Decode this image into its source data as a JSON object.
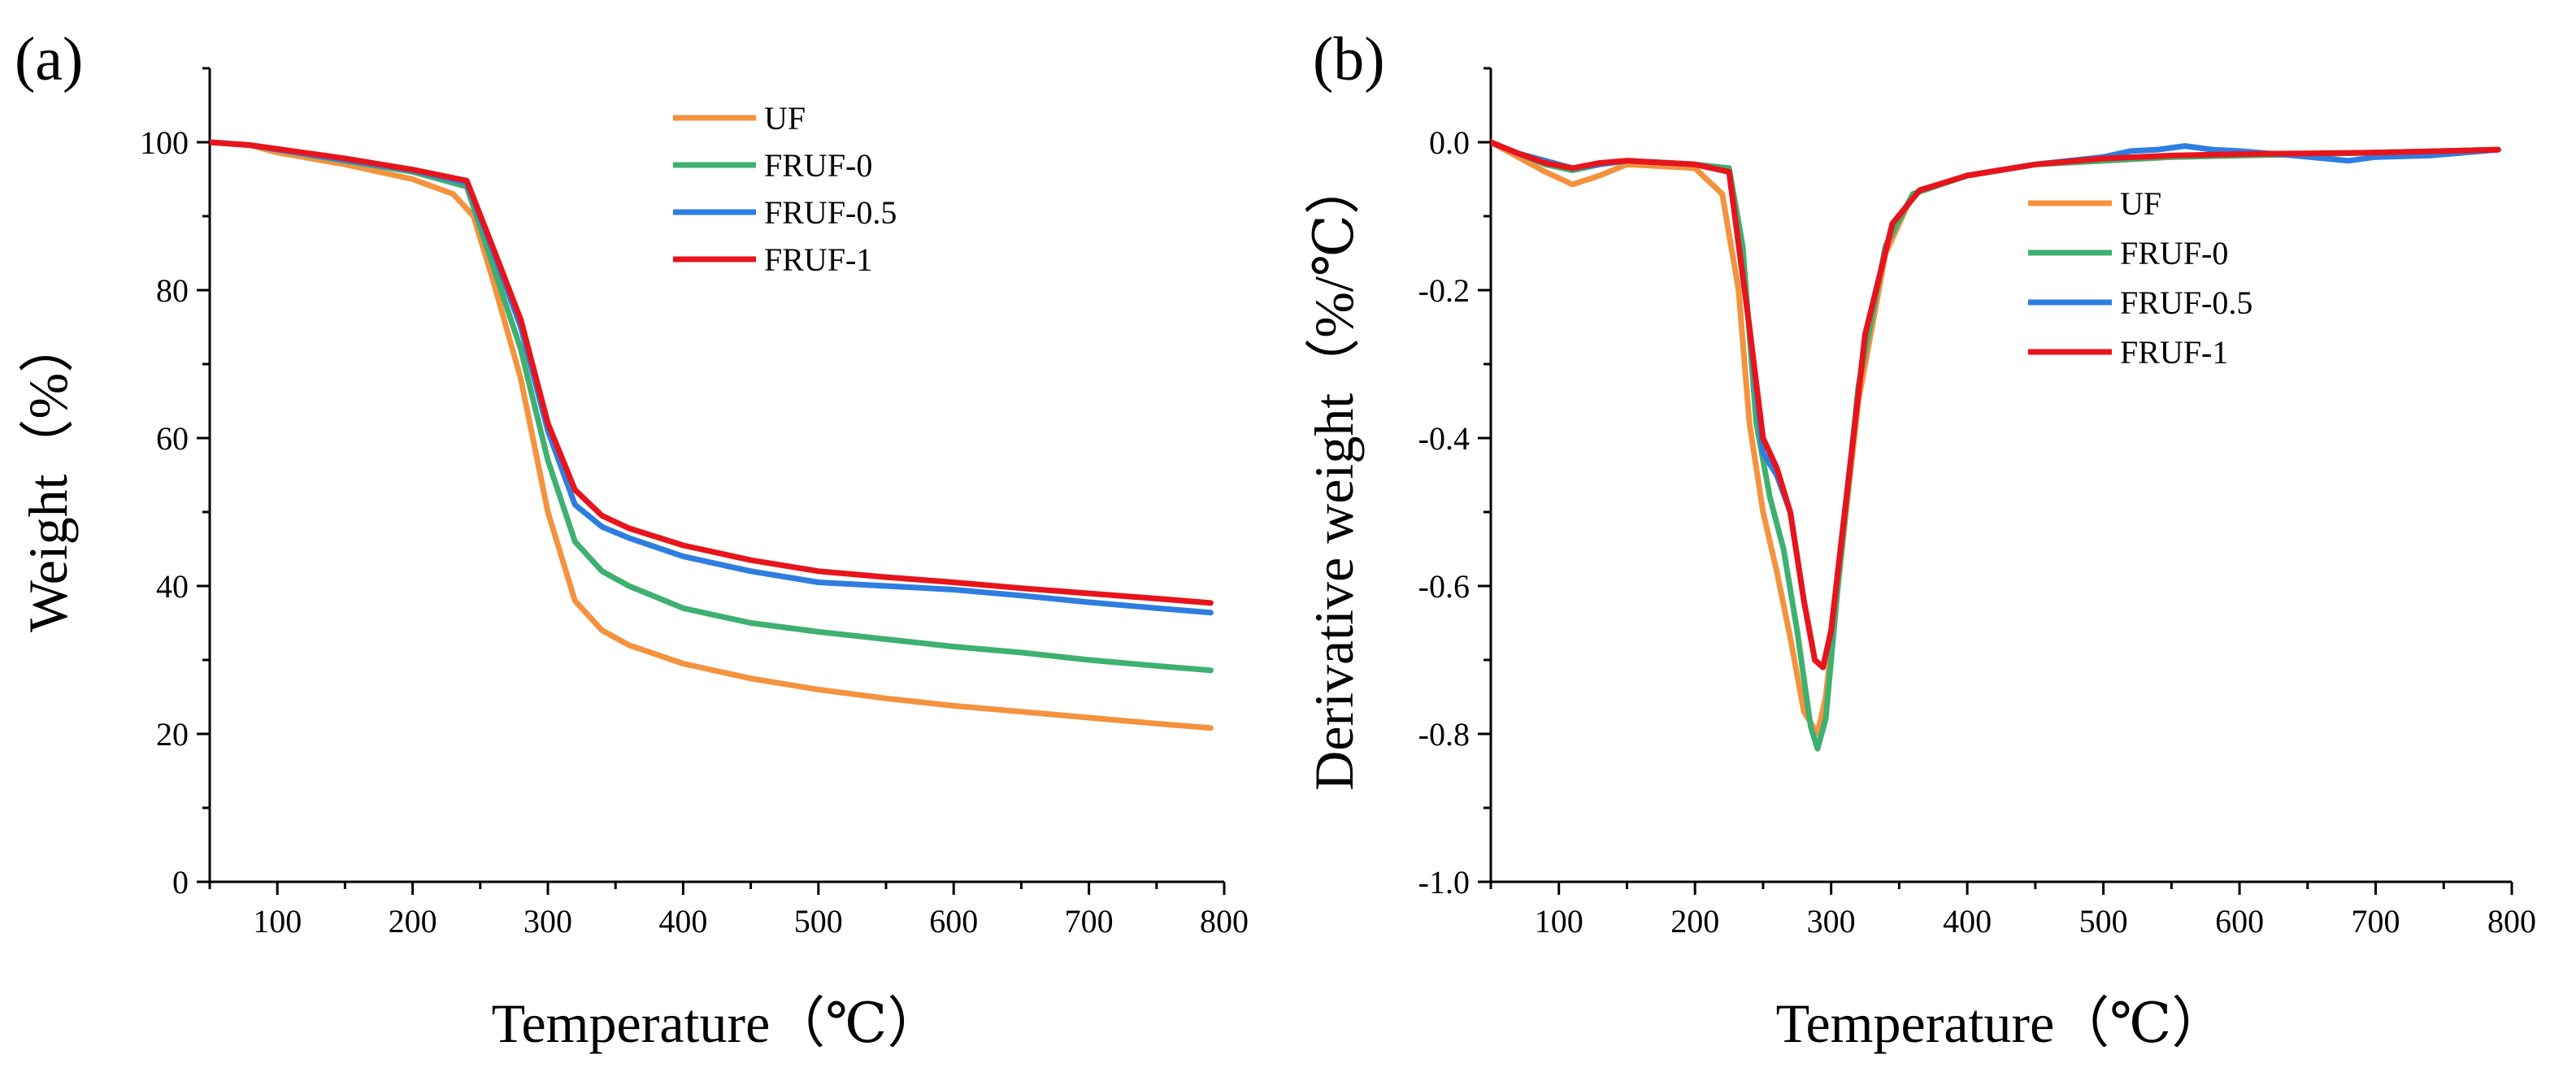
{
  "colors": {
    "UF": "#f5923e",
    "FRUF-0": "#3eb06f",
    "FRUF-0.5": "#2f7de1",
    "FRUF-1": "#e8141b"
  },
  "chart_data": [
    {
      "type": "line",
      "panel_label": "(a)",
      "xlabel": "Temperature（℃）",
      "ylabel": "Weight（%）",
      "xlim": [
        50,
        800
      ],
      "ylim": [
        0,
        110
      ],
      "xticks": [
        100,
        200,
        300,
        400,
        500,
        600,
        700,
        800
      ],
      "yticks": [
        0,
        20,
        40,
        60,
        80,
        100
      ],
      "xtick_labels": [
        "100",
        "200",
        "300",
        "400",
        "500",
        "600",
        "700",
        "800"
      ],
      "ytick_labels": [
        "0",
        "20",
        "40",
        "60",
        "80",
        "100"
      ],
      "grid": false,
      "legend_position": "top-center",
      "series": [
        {
          "name": "UF",
          "x": [
            50,
            80,
            100,
            150,
            200,
            230,
            245,
            260,
            280,
            300,
            320,
            340,
            360,
            400,
            450,
            500,
            550,
            600,
            650,
            700,
            750,
            790
          ],
          "y": [
            100,
            99.6,
            98.6,
            97,
            95,
            93,
            90,
            81,
            68,
            50,
            38,
            34,
            32,
            29.5,
            27.5,
            26,
            24.8,
            23.8,
            23,
            22.2,
            21.4,
            20.8
          ]
        },
        {
          "name": "FRUF-0",
          "x": [
            50,
            80,
            100,
            150,
            200,
            240,
            260,
            280,
            300,
            320,
            340,
            360,
            400,
            450,
            500,
            550,
            600,
            650,
            700,
            750,
            790
          ],
          "y": [
            100,
            99.6,
            99,
            97.5,
            96,
            94,
            83,
            72,
            57,
            46,
            42,
            40,
            37,
            35,
            33.8,
            32.8,
            31.8,
            31,
            30,
            29.2,
            28.6
          ]
        },
        {
          "name": "FRUF-0.5",
          "x": [
            50,
            80,
            100,
            150,
            200,
            240,
            260,
            280,
            300,
            320,
            340,
            360,
            400,
            450,
            500,
            550,
            600,
            650,
            700,
            750,
            790
          ],
          "y": [
            100,
            99.6,
            99,
            97.6,
            96.2,
            94.5,
            85,
            75,
            61,
            51,
            48,
            46.5,
            44,
            42,
            40.5,
            40,
            39.5,
            38.7,
            37.8,
            37,
            36.4
          ]
        },
        {
          "name": "FRUF-1",
          "x": [
            50,
            80,
            100,
            150,
            200,
            240,
            260,
            280,
            300,
            320,
            340,
            360,
            400,
            450,
            500,
            550,
            600,
            650,
            700,
            750,
            790
          ],
          "y": [
            100,
            99.6,
            99.1,
            97.8,
            96.3,
            94.8,
            85.5,
            76,
            62,
            53,
            49.5,
            47.8,
            45.5,
            43.5,
            42,
            41.2,
            40.5,
            39.7,
            39,
            38.3,
            37.7
          ]
        }
      ]
    },
    {
      "type": "line",
      "panel_label": "(b)",
      "xlabel": "Temperature（℃）",
      "ylabel": "Derivative weight（%/℃）",
      "xlim": [
        50,
        800
      ],
      "ylim": [
        -1.0,
        0.1
      ],
      "xticks": [
        100,
        200,
        300,
        400,
        500,
        600,
        700,
        800
      ],
      "yticks": [
        -1.0,
        -0.8,
        -0.6,
        -0.4,
        -0.2,
        0.0
      ],
      "xtick_labels": [
        "100",
        "200",
        "300",
        "400",
        "500",
        "600",
        "700",
        "800"
      ],
      "ytick_labels": [
        "-1.0",
        "-0.8",
        "-0.6",
        "-0.4",
        "-0.2",
        "0.0"
      ],
      "grid": false,
      "legend_position": "top-left",
      "series": [
        {
          "name": "UF",
          "x": [
            50,
            70,
            90,
            110,
            130,
            150,
            200,
            220,
            232,
            240,
            250,
            260,
            270,
            280,
            290,
            296,
            305,
            320,
            340,
            360,
            400,
            450,
            500,
            550,
            600,
            650,
            700,
            750,
            790
          ],
          "y": [
            0,
            -0.02,
            -0.04,
            -0.057,
            -0.045,
            -0.03,
            -0.035,
            -0.07,
            -0.2,
            -0.38,
            -0.5,
            -0.58,
            -0.67,
            -0.77,
            -0.8,
            -0.75,
            -0.6,
            -0.35,
            -0.15,
            -0.07,
            -0.045,
            -0.03,
            -0.025,
            -0.02,
            -0.018,
            -0.016,
            -0.014,
            -0.012,
            -0.01
          ]
        },
        {
          "name": "FRUF-0",
          "x": [
            50,
            70,
            90,
            110,
            130,
            150,
            200,
            225,
            235,
            245,
            255,
            265,
            275,
            285,
            290,
            296,
            305,
            320,
            340,
            360,
            400,
            450,
            500,
            550,
            600,
            650,
            700,
            750,
            790
          ],
          "y": [
            0,
            -0.015,
            -0.03,
            -0.038,
            -0.03,
            -0.025,
            -0.03,
            -0.035,
            -0.14,
            -0.38,
            -0.48,
            -0.55,
            -0.66,
            -0.79,
            -0.82,
            -0.78,
            -0.6,
            -0.33,
            -0.14,
            -0.07,
            -0.045,
            -0.03,
            -0.025,
            -0.02,
            -0.018,
            -0.016,
            -0.014,
            -0.012,
            -0.01
          ]
        },
        {
          "name": "FRUF-0.5",
          "x": [
            50,
            70,
            90,
            110,
            130,
            150,
            200,
            225,
            240,
            250,
            260,
            270,
            280,
            288,
            294,
            300,
            310,
            325,
            345,
            365,
            400,
            450,
            500,
            520,
            540,
            560,
            580,
            600,
            640,
            680,
            700,
            740,
            790
          ],
          "y": [
            0,
            -0.015,
            -0.025,
            -0.035,
            -0.03,
            -0.025,
            -0.03,
            -0.04,
            -0.25,
            -0.42,
            -0.45,
            -0.5,
            -0.62,
            -0.7,
            -0.71,
            -0.66,
            -0.5,
            -0.26,
            -0.11,
            -0.065,
            -0.045,
            -0.03,
            -0.02,
            -0.012,
            -0.01,
            -0.005,
            -0.01,
            -0.012,
            -0.018,
            -0.025,
            -0.02,
            -0.018,
            -0.01
          ]
        },
        {
          "name": "FRUF-1",
          "x": [
            45,
            50,
            70,
            90,
            110,
            130,
            150,
            200,
            225,
            240,
            250,
            260,
            270,
            280,
            288,
            294,
            300,
            310,
            325,
            345,
            365,
            400,
            450,
            500,
            550,
            600,
            650,
            700,
            750,
            790
          ],
          "y": [
            0.01,
            0,
            -0.015,
            -0.028,
            -0.035,
            -0.028,
            -0.025,
            -0.03,
            -0.04,
            -0.25,
            -0.4,
            -0.44,
            -0.5,
            -0.62,
            -0.7,
            -0.71,
            -0.66,
            -0.5,
            -0.26,
            -0.11,
            -0.065,
            -0.045,
            -0.03,
            -0.022,
            -0.018,
            -0.016,
            -0.015,
            -0.014,
            -0.012,
            -0.01
          ]
        }
      ]
    }
  ]
}
